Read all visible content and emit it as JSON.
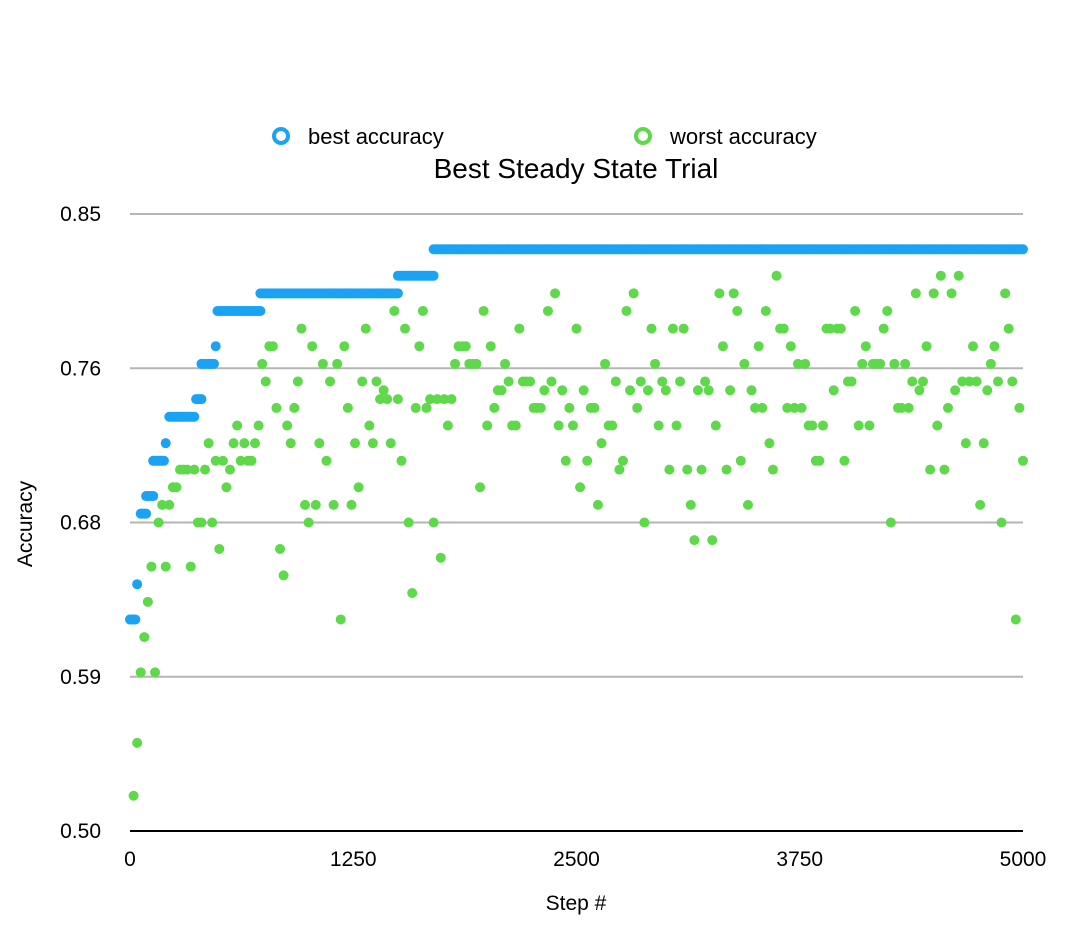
{
  "chart_data": {
    "type": "scatter",
    "title": "Best Steady State Trial",
    "xlabel": "Step #",
    "ylabel": "Accuracy",
    "xlim": [
      0,
      5000
    ],
    "ylim": [
      0.5,
      0.85
    ],
    "xticks": [
      "0",
      "1250",
      "2500",
      "3750",
      "5000"
    ],
    "xtick_values": [
      0,
      1250,
      2500,
      3750,
      5000
    ],
    "yticks": [
      "0.85",
      "0.76",
      "0.68",
      "0.59",
      "0.50"
    ],
    "ytick_values": [
      0.85,
      0.7625,
      0.675,
      0.5875,
      0.5
    ],
    "grid": true,
    "legend_position": "top",
    "series": [
      {
        "name": "best accuracy",
        "color": "#1aa3f5",
        "segments": [
          {
            "from": 0,
            "to": 30,
            "step": 10,
            "y": 0.62
          },
          {
            "from": 40,
            "to": 40,
            "step": 10,
            "y": 0.64
          },
          {
            "from": 60,
            "to": 90,
            "step": 10,
            "y": 0.68
          },
          {
            "from": 90,
            "to": 130,
            "step": 10,
            "y": 0.69
          },
          {
            "from": 130,
            "to": 190,
            "step": 10,
            "y": 0.71
          },
          {
            "from": 200,
            "to": 200,
            "step": 10,
            "y": 0.72
          },
          {
            "from": 220,
            "to": 360,
            "step": 10,
            "y": 0.735
          },
          {
            "from": 370,
            "to": 400,
            "step": 10,
            "y": 0.745
          },
          {
            "from": 400,
            "to": 470,
            "step": 10,
            "y": 0.765
          },
          {
            "from": 480,
            "to": 480,
            "step": 10,
            "y": 0.775
          },
          {
            "from": 490,
            "to": 730,
            "step": 10,
            "y": 0.795
          },
          {
            "from": 730,
            "to": 1500,
            "step": 10,
            "y": 0.805
          },
          {
            "from": 1500,
            "to": 1700,
            "step": 10,
            "y": 0.815
          },
          {
            "from": 1700,
            "to": 5000,
            "step": 10,
            "y": 0.83
          }
        ]
      },
      {
        "name": "worst accuracy",
        "color": "#5ed94a",
        "points": [
          [
            20,
            0.52
          ],
          [
            40,
            0.55
          ],
          [
            60,
            0.59
          ],
          [
            80,
            0.61
          ],
          [
            100,
            0.63
          ],
          [
            120,
            0.65
          ],
          [
            140,
            0.59
          ],
          [
            160,
            0.675
          ],
          [
            180,
            0.685
          ],
          [
            200,
            0.65
          ],
          [
            220,
            0.685
          ],
          [
            240,
            0.695
          ],
          [
            260,
            0.695
          ],
          [
            280,
            0.705
          ],
          [
            300,
            0.705
          ],
          [
            320,
            0.705
          ],
          [
            340,
            0.65
          ],
          [
            360,
            0.705
          ],
          [
            380,
            0.675
          ],
          [
            400,
            0.675
          ],
          [
            420,
            0.705
          ],
          [
            440,
            0.72
          ],
          [
            460,
            0.675
          ],
          [
            480,
            0.71
          ],
          [
            500,
            0.66
          ],
          [
            520,
            0.71
          ],
          [
            540,
            0.695
          ],
          [
            560,
            0.705
          ],
          [
            580,
            0.72
          ],
          [
            600,
            0.73
          ],
          [
            620,
            0.71
          ],
          [
            640,
            0.72
          ],
          [
            660,
            0.71
          ],
          [
            680,
            0.71
          ],
          [
            700,
            0.72
          ],
          [
            720,
            0.73
          ],
          [
            740,
            0.765
          ],
          [
            760,
            0.755
          ],
          [
            780,
            0.775
          ],
          [
            800,
            0.775
          ],
          [
            820,
            0.74
          ],
          [
            840,
            0.66
          ],
          [
            860,
            0.645
          ],
          [
            880,
            0.73
          ],
          [
            900,
            0.72
          ],
          [
            920,
            0.74
          ],
          [
            940,
            0.755
          ],
          [
            960,
            0.785
          ],
          [
            980,
            0.685
          ],
          [
            1000,
            0.675
          ],
          [
            1020,
            0.775
          ],
          [
            1040,
            0.685
          ],
          [
            1060,
            0.72
          ],
          [
            1080,
            0.765
          ],
          [
            1100,
            0.71
          ],
          [
            1120,
            0.755
          ],
          [
            1140,
            0.685
          ],
          [
            1160,
            0.765
          ],
          [
            1180,
            0.62
          ],
          [
            1200,
            0.775
          ],
          [
            1220,
            0.74
          ],
          [
            1240,
            0.685
          ],
          [
            1260,
            0.72
          ],
          [
            1280,
            0.695
          ],
          [
            1300,
            0.755
          ],
          [
            1320,
            0.785
          ],
          [
            1340,
            0.73
          ],
          [
            1360,
            0.72
          ],
          [
            1380,
            0.755
          ],
          [
            1400,
            0.745
          ],
          [
            1420,
            0.75
          ],
          [
            1440,
            0.745
          ],
          [
            1460,
            0.72
          ],
          [
            1480,
            0.795
          ],
          [
            1500,
            0.745
          ],
          [
            1520,
            0.71
          ],
          [
            1540,
            0.785
          ],
          [
            1560,
            0.675
          ],
          [
            1580,
            0.635
          ],
          [
            1600,
            0.74
          ],
          [
            1620,
            0.775
          ],
          [
            1640,
            0.795
          ],
          [
            1660,
            0.74
          ],
          [
            1680,
            0.745
          ],
          [
            1700,
            0.675
          ],
          [
            1720,
            0.745
          ],
          [
            1740,
            0.655
          ],
          [
            1760,
            0.745
          ],
          [
            1780,
            0.73
          ],
          [
            1800,
            0.745
          ],
          [
            1820,
            0.765
          ],
          [
            1840,
            0.775
          ],
          [
            1860,
            0.775
          ],
          [
            1880,
            0.775
          ],
          [
            1900,
            0.765
          ],
          [
            1920,
            0.765
          ],
          [
            1940,
            0.765
          ],
          [
            1960,
            0.695
          ],
          [
            1980,
            0.795
          ],
          [
            2000,
            0.73
          ],
          [
            2020,
            0.775
          ],
          [
            2040,
            0.74
          ],
          [
            2060,
            0.75
          ],
          [
            2080,
            0.75
          ],
          [
            2100,
            0.765
          ],
          [
            2120,
            0.755
          ],
          [
            2140,
            0.73
          ],
          [
            2160,
            0.73
          ],
          [
            2180,
            0.785
          ],
          [
            2200,
            0.755
          ],
          [
            2220,
            0.755
          ],
          [
            2240,
            0.755
          ],
          [
            2260,
            0.74
          ],
          [
            2280,
            0.74
          ],
          [
            2300,
            0.74
          ],
          [
            2320,
            0.75
          ],
          [
            2340,
            0.795
          ],
          [
            2360,
            0.755
          ],
          [
            2380,
            0.805
          ],
          [
            2400,
            0.73
          ],
          [
            2420,
            0.75
          ],
          [
            2440,
            0.71
          ],
          [
            2460,
            0.74
          ],
          [
            2480,
            0.73
          ],
          [
            2500,
            0.785
          ],
          [
            2520,
            0.695
          ],
          [
            2540,
            0.75
          ],
          [
            2560,
            0.71
          ],
          [
            2580,
            0.74
          ],
          [
            2600,
            0.74
          ],
          [
            2620,
            0.685
          ],
          [
            2640,
            0.72
          ],
          [
            2660,
            0.765
          ],
          [
            2680,
            0.73
          ],
          [
            2700,
            0.73
          ],
          [
            2720,
            0.755
          ],
          [
            2740,
            0.705
          ],
          [
            2760,
            0.71
          ],
          [
            2780,
            0.795
          ],
          [
            2800,
            0.75
          ],
          [
            2820,
            0.805
          ],
          [
            2840,
            0.74
          ],
          [
            2860,
            0.755
          ],
          [
            2880,
            0.675
          ],
          [
            2900,
            0.75
          ],
          [
            2920,
            0.785
          ],
          [
            2940,
            0.765
          ],
          [
            2960,
            0.73
          ],
          [
            2980,
            0.755
          ],
          [
            3000,
            0.75
          ],
          [
            3020,
            0.705
          ],
          [
            3040,
            0.785
          ],
          [
            3060,
            0.73
          ],
          [
            3080,
            0.755
          ],
          [
            3100,
            0.785
          ],
          [
            3120,
            0.705
          ],
          [
            3140,
            0.685
          ],
          [
            3160,
            0.665
          ],
          [
            3180,
            0.75
          ],
          [
            3200,
            0.705
          ],
          [
            3220,
            0.755
          ],
          [
            3240,
            0.75
          ],
          [
            3260,
            0.665
          ],
          [
            3280,
            0.73
          ],
          [
            3300,
            0.805
          ],
          [
            3320,
            0.775
          ],
          [
            3340,
            0.705
          ],
          [
            3360,
            0.75
          ],
          [
            3380,
            0.805
          ],
          [
            3400,
            0.795
          ],
          [
            3420,
            0.71
          ],
          [
            3440,
            0.765
          ],
          [
            3460,
            0.685
          ],
          [
            3480,
            0.75
          ],
          [
            3500,
            0.74
          ],
          [
            3520,
            0.775
          ],
          [
            3540,
            0.74
          ],
          [
            3560,
            0.795
          ],
          [
            3580,
            0.72
          ],
          [
            3600,
            0.705
          ],
          [
            3620,
            0.815
          ],
          [
            3640,
            0.785
          ],
          [
            3660,
            0.785
          ],
          [
            3680,
            0.74
          ],
          [
            3700,
            0.775
          ],
          [
            3720,
            0.74
          ],
          [
            3740,
            0.765
          ],
          [
            3760,
            0.74
          ],
          [
            3780,
            0.765
          ],
          [
            3800,
            0.73
          ],
          [
            3820,
            0.73
          ],
          [
            3840,
            0.71
          ],
          [
            3860,
            0.71
          ],
          [
            3880,
            0.73
          ],
          [
            3900,
            0.785
          ],
          [
            3920,
            0.785
          ],
          [
            3940,
            0.75
          ],
          [
            3960,
            0.785
          ],
          [
            3980,
            0.785
          ],
          [
            4000,
            0.71
          ],
          [
            4020,
            0.755
          ],
          [
            4040,
            0.755
          ],
          [
            4060,
            0.795
          ],
          [
            4080,
            0.73
          ],
          [
            4100,
            0.765
          ],
          [
            4120,
            0.775
          ],
          [
            4140,
            0.73
          ],
          [
            4160,
            0.765
          ],
          [
            4180,
            0.765
          ],
          [
            4200,
            0.765
          ],
          [
            4220,
            0.785
          ],
          [
            4240,
            0.795
          ],
          [
            4260,
            0.675
          ],
          [
            4280,
            0.765
          ],
          [
            4300,
            0.74
          ],
          [
            4320,
            0.74
          ],
          [
            4340,
            0.765
          ],
          [
            4360,
            0.74
          ],
          [
            4380,
            0.755
          ],
          [
            4400,
            0.805
          ],
          [
            4420,
            0.75
          ],
          [
            4440,
            0.755
          ],
          [
            4460,
            0.775
          ],
          [
            4480,
            0.705
          ],
          [
            4500,
            0.805
          ],
          [
            4520,
            0.73
          ],
          [
            4540,
            0.815
          ],
          [
            4560,
            0.705
          ],
          [
            4580,
            0.74
          ],
          [
            4600,
            0.805
          ],
          [
            4620,
            0.75
          ],
          [
            4640,
            0.815
          ],
          [
            4660,
            0.755
          ],
          [
            4680,
            0.72
          ],
          [
            4700,
            0.755
          ],
          [
            4720,
            0.775
          ],
          [
            4740,
            0.755
          ],
          [
            4760,
            0.685
          ],
          [
            4780,
            0.72
          ],
          [
            4800,
            0.75
          ],
          [
            4820,
            0.765
          ],
          [
            4840,
            0.775
          ],
          [
            4860,
            0.755
          ],
          [
            4880,
            0.675
          ],
          [
            4900,
            0.805
          ],
          [
            4920,
            0.785
          ],
          [
            4940,
            0.755
          ],
          [
            4960,
            0.62
          ],
          [
            4980,
            0.74
          ],
          [
            5000,
            0.71
          ]
        ]
      }
    ]
  }
}
